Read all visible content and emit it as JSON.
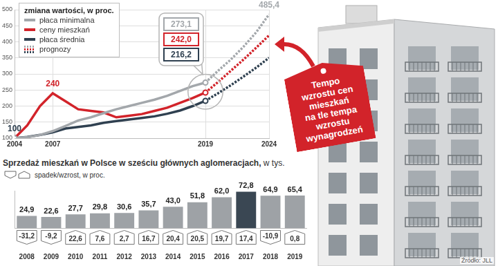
{
  "chart_data": [
    {
      "type": "line",
      "title": "zmiana wartości, w proc.",
      "x": [
        2004,
        2005,
        2006,
        2007,
        2008,
        2009,
        2010,
        2011,
        2012,
        2013,
        2014,
        2015,
        2016,
        2017,
        2018,
        2019,
        2020,
        2021,
        2022,
        2023,
        2024
      ],
      "xlim": [
        2004,
        2024
      ],
      "xticks": [
        2004,
        2007,
        2019,
        2024
      ],
      "ylim": [
        100,
        500
      ],
      "yticks": [
        100,
        150,
        200,
        250,
        300,
        350,
        400,
        450,
        500
      ],
      "grid": true,
      "legend": "upper left",
      "series": [
        {
          "name": "płaca minimalna",
          "color": "#a3a7ab",
          "marker": "circle",
          "line_style": "solid",
          "values": [
            100,
            103,
            110,
            122,
            138,
            155,
            165,
            178,
            190,
            200,
            210,
            220,
            232,
            247,
            262,
            273.1,
            310,
            345,
            385,
            430,
            485.4
          ]
        },
        {
          "name": "ceny mieszkań",
          "color": "#d2232a",
          "marker": "circle",
          "line_style": "solid",
          "values": [
            100,
            140,
            200,
            240,
            215,
            190,
            185,
            180,
            165,
            170,
            175,
            185,
            195,
            210,
            225,
            242.0,
            275,
            310,
            345,
            382,
            420
          ]
        },
        {
          "name": "płaca średnia",
          "color": "#2f4050",
          "marker": "circle",
          "line_style": "solid",
          "values": [
            100,
            104,
            110,
            118,
            130,
            135,
            140,
            148,
            153,
            158,
            163,
            168,
            176,
            186,
            200,
            216.2,
            240,
            265,
            292,
            320,
            350
          ]
        }
      ],
      "forecast": {
        "name": "prognozy",
        "from": 2019,
        "line_style": "dashed"
      },
      "annotations": [
        {
          "series": 2,
          "x": 2004,
          "label": "100"
        },
        {
          "series": 1,
          "x": 2007,
          "label": "240"
        },
        {
          "series": 0,
          "x": 2019,
          "label": "273,1"
        },
        {
          "series": 1,
          "x": 2019,
          "label": "242,0"
        },
        {
          "series": 2,
          "x": 2019,
          "label": "216,2"
        },
        {
          "series": 0,
          "x": 2024,
          "label": "485,4"
        }
      ]
    },
    {
      "type": "bar",
      "title": "Sprzedaż mieszkań w Polsce w sześciu głównych aglomeracjach,",
      "subtitle": "w tys.",
      "categories": [
        "2008",
        "2009",
        "2010",
        "2011",
        "2012",
        "2013",
        "2014",
        "2015",
        "2016",
        "2017",
        "2018",
        "2019"
      ],
      "values": [
        24.9,
        22.6,
        27.7,
        29.8,
        30.6,
        35.7,
        43.0,
        51.8,
        62.0,
        72.8,
        64.9,
        65.4
      ],
      "value_labels": [
        "24,9",
        "22,6",
        "27,7",
        "29,8",
        "30,6",
        "35,7",
        "43,0",
        "51,8",
        "62,0",
        "72,8",
        "64,9",
        "65,4"
      ],
      "colors": [
        "#9ea2a6",
        "#9ea2a6",
        "#9ea2a6",
        "#9ea2a6",
        "#9ea2a6",
        "#9ea2a6",
        "#9ea2a6",
        "#9ea2a6",
        "#9ea2a6",
        "#3a4753",
        "#9ea2a6",
        "#9ea2a6"
      ],
      "data_labels": true,
      "ylim": [
        0,
        75
      ],
      "tick_labels": "x",
      "change": {
        "name": "spadek/wzrost, w proc.",
        "values": [
          -31.2,
          -9.2,
          22.6,
          7.6,
          2.7,
          16.7,
          20.4,
          20.5,
          19.7,
          17.4,
          -10.9,
          0.8
        ],
        "labels": [
          "-31,2",
          "-9,2",
          "22,6",
          "7,6",
          "2,7",
          "16,7",
          "20,4",
          "20,5",
          "19,7",
          "17,4",
          "-10,9",
          "0,8"
        ]
      }
    }
  ],
  "tag": [
    "Tempo",
    "wzrostu cen",
    "mieszkań",
    "na tle tempa",
    "wzrostu",
    "wynagrodzeń"
  ],
  "source": "Źródło: JLL"
}
